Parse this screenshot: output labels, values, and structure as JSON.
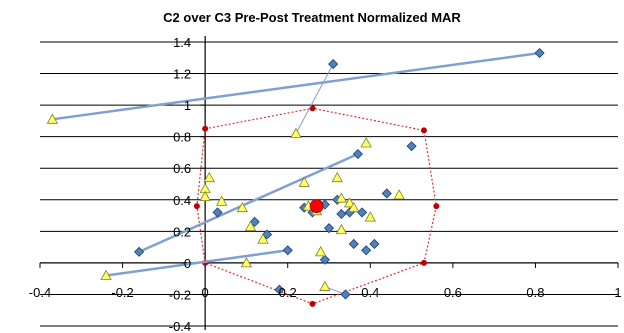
{
  "chart_data": {
    "type": "scatter",
    "title": "C2 over C3 Pre-Post Treatment Normalized MAR",
    "xlim": [
      -0.4,
      1.0
    ],
    "ylim": [
      -0.4,
      1.4
    ],
    "x_ticks": [
      -0.4,
      -0.2,
      0,
      0.2,
      0.4,
      0.6,
      0.8,
      1
    ],
    "x_tick_labels": [
      "-0.4",
      "-0.2",
      "0",
      "0.2",
      "0.4",
      "0.6",
      "0.8",
      "1"
    ],
    "y_ticks": [
      -0.4,
      -0.2,
      0,
      0.2,
      0.4,
      0.6,
      0.8,
      1,
      1.2,
      1.4
    ],
    "y_tick_labels": [
      "-0.4",
      "-0.2",
      "0",
      "0.2",
      "0.4",
      "0.6",
      "0.8",
      "1",
      "1.2",
      "1.4"
    ],
    "grid": "horizontal",
    "legend": "none",
    "colors": {
      "diamond_fill": "#4f81bd",
      "diamond_edge": "#1f3f6e",
      "triangle_fill": "#ffff66",
      "triangle_edge": "#7f7f2a",
      "hull": "#e03030",
      "connector": "#7fa0d0",
      "centroid": "#ff0000",
      "grid": "#000000"
    },
    "series": [
      {
        "marker": "diamond",
        "points": [
          [
            0.81,
            1.33
          ],
          [
            0.31,
            1.26
          ],
          [
            -0.16,
            0.07
          ],
          [
            0.37,
            0.69
          ],
          [
            0.5,
            0.74
          ],
          [
            0.03,
            0.32
          ],
          [
            0.12,
            0.26
          ],
          [
            0.15,
            0.18
          ],
          [
            0.2,
            0.08
          ],
          [
            0.24,
            0.35
          ],
          [
            0.26,
            0.32
          ],
          [
            0.27,
            0.37
          ],
          [
            0.29,
            0.37
          ],
          [
            0.3,
            0.22
          ],
          [
            0.32,
            0.4
          ],
          [
            0.33,
            0.31
          ],
          [
            0.35,
            0.32
          ],
          [
            0.36,
            0.12
          ],
          [
            0.38,
            0.32
          ],
          [
            0.41,
            0.12
          ],
          [
            0.44,
            0.44
          ],
          [
            0.29,
            0.02
          ],
          [
            0.18,
            -0.17
          ],
          [
            0.34,
            -0.2
          ],
          [
            0.39,
            0.08
          ]
        ]
      },
      {
        "marker": "triangle",
        "points": [
          [
            -0.37,
            0.91
          ],
          [
            -0.24,
            -0.08
          ],
          [
            0.22,
            0.82
          ],
          [
            0.39,
            0.76
          ],
          [
            0.01,
            0.54
          ],
          [
            0.0,
            0.47
          ],
          [
            0.0,
            0.42
          ],
          [
            0.04,
            0.39
          ],
          [
            0.09,
            0.35
          ],
          [
            0.11,
            0.23
          ],
          [
            0.14,
            0.15
          ],
          [
            0.1,
            0.0
          ],
          [
            0.24,
            0.51
          ],
          [
            0.25,
            0.36
          ],
          [
            0.27,
            0.33
          ],
          [
            0.32,
            0.54
          ],
          [
            0.33,
            0.41
          ],
          [
            0.35,
            0.38
          ],
          [
            0.4,
            0.29
          ],
          [
            0.47,
            0.43
          ],
          [
            0.28,
            0.07
          ],
          [
            0.33,
            0.21
          ],
          [
            0.36,
            0.35
          ],
          [
            0.29,
            -0.15
          ]
        ]
      }
    ],
    "connectors": [
      [
        [
          -0.37,
          0.91
        ],
        [
          0.81,
          1.33
        ]
      ],
      [
        [
          0.22,
          0.82
        ],
        [
          0.31,
          1.26
        ]
      ],
      [
        [
          -0.16,
          0.07
        ],
        [
          0.37,
          0.69
        ]
      ],
      [
        [
          -0.24,
          -0.08
        ],
        [
          0.2,
          0.08
        ]
      ],
      [
        [
          0.29,
          -0.15
        ],
        [
          0.34,
          -0.2
        ]
      ]
    ],
    "hull": [
      [
        0.0,
        0.85
      ],
      [
        0.26,
        0.98
      ],
      [
        0.53,
        0.84
      ],
      [
        0.56,
        0.36
      ],
      [
        0.53,
        0.0
      ],
      [
        0.26,
        -0.26
      ],
      [
        0.0,
        0.0
      ],
      [
        -0.02,
        0.36
      ]
    ],
    "centroid": [
      0.27,
      0.36
    ]
  }
}
